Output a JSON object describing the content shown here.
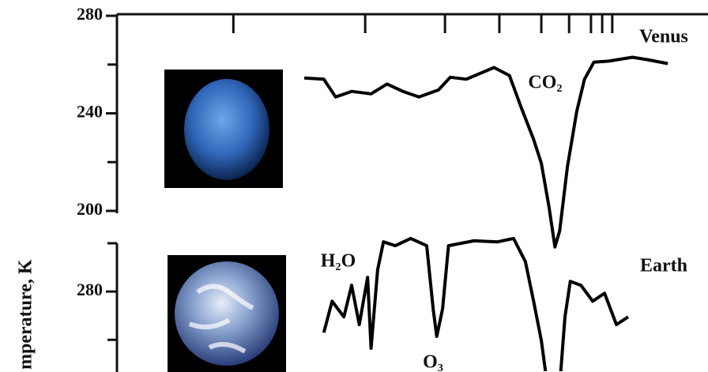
{
  "chart_data": [
    {
      "type": "line",
      "xlim": [
        0,
        100
      ],
      "ylim": [
        200,
        280
      ],
      "yticks": [
        200,
        240,
        280
      ],
      "minor_ticks": [
        220,
        260
      ],
      "top_ticks": [
        19.7,
        42.0,
        55.5,
        64.7,
        71.8,
        76.5,
        80.2,
        82.1,
        83.8
      ],
      "x": [
        31.7,
        35.0,
        37.0,
        39.7,
        43.0,
        45.7,
        48.4,
        51.1,
        54.4,
        56.4,
        59.1,
        63.8,
        66.4,
        68.4,
        70.5,
        71.8,
        73.1,
        74.1,
        74.9,
        76.2,
        77.8,
        79.1,
        80.7,
        83.2,
        87.2,
        89.8,
        93.2
      ],
      "series": [
        {
          "name": "Venus",
          "color": "#000000",
          "values": [
            254.5,
            254,
            246.7,
            249,
            248,
            252,
            249,
            246.7,
            249.6,
            254.8,
            254,
            258.8,
            255.5,
            242.4,
            229.3,
            219.5,
            201.6,
            185.2,
            191.8,
            217.9,
            240.8,
            254,
            261,
            261.4,
            263,
            262,
            260.4
          ]
        }
      ],
      "annotations": [
        "CO₂"
      ]
    },
    {
      "type": "line",
      "xlim": [
        0,
        100
      ],
      "ylim": [
        247,
        300
      ],
      "yticks": [
        280
      ],
      "minor_ticks": [
        260,
        300
      ],
      "ylabel": "mperature, K",
      "x": [
        35.0,
        36.4,
        38.4,
        39.7,
        41.0,
        42.4,
        43.0,
        44.1,
        45.1,
        47.1,
        49.7,
        52.4,
        53.5,
        54.1,
        55.1,
        56.1,
        60.4,
        64.4,
        67.1,
        69.1,
        70.5,
        71.8,
        72.5,
        73.8,
        75.1,
        75.8,
        76.7,
        78.5,
        80.5,
        82.5,
        84.5,
        86.5
      ],
      "series": [
        {
          "name": "Earth",
          "color": "#000000",
          "values": [
            263,
            276,
            269.5,
            282.6,
            266.3,
            285.9,
            256.5,
            289,
            300.6,
            299,
            302,
            299,
            272.8,
            261.4,
            272.8,
            299,
            301,
            300.6,
            302,
            292.4,
            276,
            259.7,
            247,
            null,
            247,
            269.5,
            284.2,
            282.6,
            276,
            279.3,
            266.3,
            269.5
          ]
        }
      ],
      "annotations": [
        "H₂O",
        "O₃"
      ]
    }
  ]
}
